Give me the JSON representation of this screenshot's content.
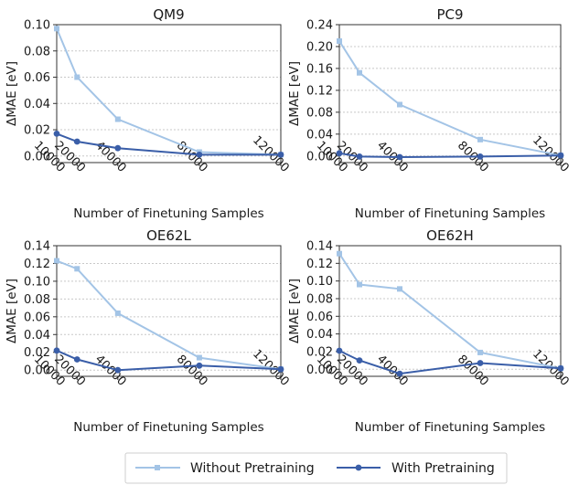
{
  "chart_data": [
    {
      "type": "line",
      "title": "QM9",
      "xlabel": "Number of Finetuning Samples",
      "ylabel": "ΔMAE [eV]",
      "x": [
        10000,
        20000,
        40000,
        80000,
        120000
      ],
      "xticks": [
        "10000",
        "20000",
        "40000",
        "80000",
        "120000"
      ],
      "ylim": [
        -0.005,
        0.1
      ],
      "yticks": [
        "0.00",
        "0.02",
        "0.04",
        "0.06",
        "0.08",
        "0.10"
      ],
      "series": [
        {
          "name": "Without Pretraining",
          "values": [
            0.097,
            0.06,
            0.028,
            0.003,
            0.001
          ]
        },
        {
          "name": "With Pretraining",
          "values": [
            0.017,
            0.011,
            0.006,
            0.001,
            0.001
          ]
        }
      ]
    },
    {
      "type": "line",
      "title": "PC9",
      "xlabel": "Number of Finetuning Samples",
      "ylabel": "ΔMAE [eV]",
      "x": [
        10000,
        20000,
        40000,
        80000,
        120000
      ],
      "xticks": [
        "10000",
        "20000",
        "40000",
        "80000",
        "120000"
      ],
      "ylim": [
        -0.012,
        0.24
      ],
      "yticks": [
        "0.00",
        "0.04",
        "0.08",
        "0.12",
        "0.16",
        "0.20",
        "0.24"
      ],
      "series": [
        {
          "name": "Without Pretraining",
          "values": [
            0.21,
            0.152,
            0.094,
            0.03,
            0.001
          ]
        },
        {
          "name": "With Pretraining",
          "values": [
            0.005,
            -0.001,
            -0.002,
            -0.001,
            0.001
          ]
        }
      ]
    },
    {
      "type": "line",
      "title": "OE62L",
      "xlabel": "Number of Finetuning Samples",
      "ylabel": "ΔMAE [eV]",
      "x": [
        10000,
        20000,
        40000,
        80000,
        120000
      ],
      "xticks": [
        "10000",
        "20000",
        "40000",
        "80000",
        "120000"
      ],
      "ylim": [
        -0.007,
        0.14
      ],
      "yticks": [
        "0.00",
        "0.02",
        "0.04",
        "0.06",
        "0.08",
        "0.10",
        "0.12",
        "0.14"
      ],
      "series": [
        {
          "name": "Without Pretraining",
          "values": [
            0.123,
            0.114,
            0.064,
            0.014,
            0.001
          ]
        },
        {
          "name": "With Pretraining",
          "values": [
            0.022,
            0.012,
            0.0,
            0.005,
            0.001
          ]
        }
      ]
    },
    {
      "type": "line",
      "title": "OE62H",
      "xlabel": "Number of Finetuning Samples",
      "ylabel": "ΔMAE [eV]",
      "x": [
        10000,
        20000,
        40000,
        80000,
        120000
      ],
      "xticks": [
        "10000",
        "20000",
        "40000",
        "80000",
        "120000"
      ],
      "ylim": [
        -0.008,
        0.14
      ],
      "yticks": [
        "0.00",
        "0.02",
        "0.04",
        "0.06",
        "0.08",
        "0.10",
        "0.12",
        "0.14"
      ],
      "series": [
        {
          "name": "Without Pretraining",
          "values": [
            0.131,
            0.096,
            0.091,
            0.019,
            0.001
          ]
        },
        {
          "name": "With Pretraining",
          "values": [
            0.021,
            0.01,
            -0.005,
            0.007,
            0.001
          ]
        }
      ]
    }
  ],
  "legend": {
    "position": "bottom-center",
    "items": [
      {
        "label": "Without Pretraining",
        "color": "#a3c4e6",
        "marker": "square"
      },
      {
        "label": "With Pretraining",
        "color": "#3a5ea8",
        "marker": "circle"
      }
    ]
  },
  "grid": "horizontal-dotted"
}
